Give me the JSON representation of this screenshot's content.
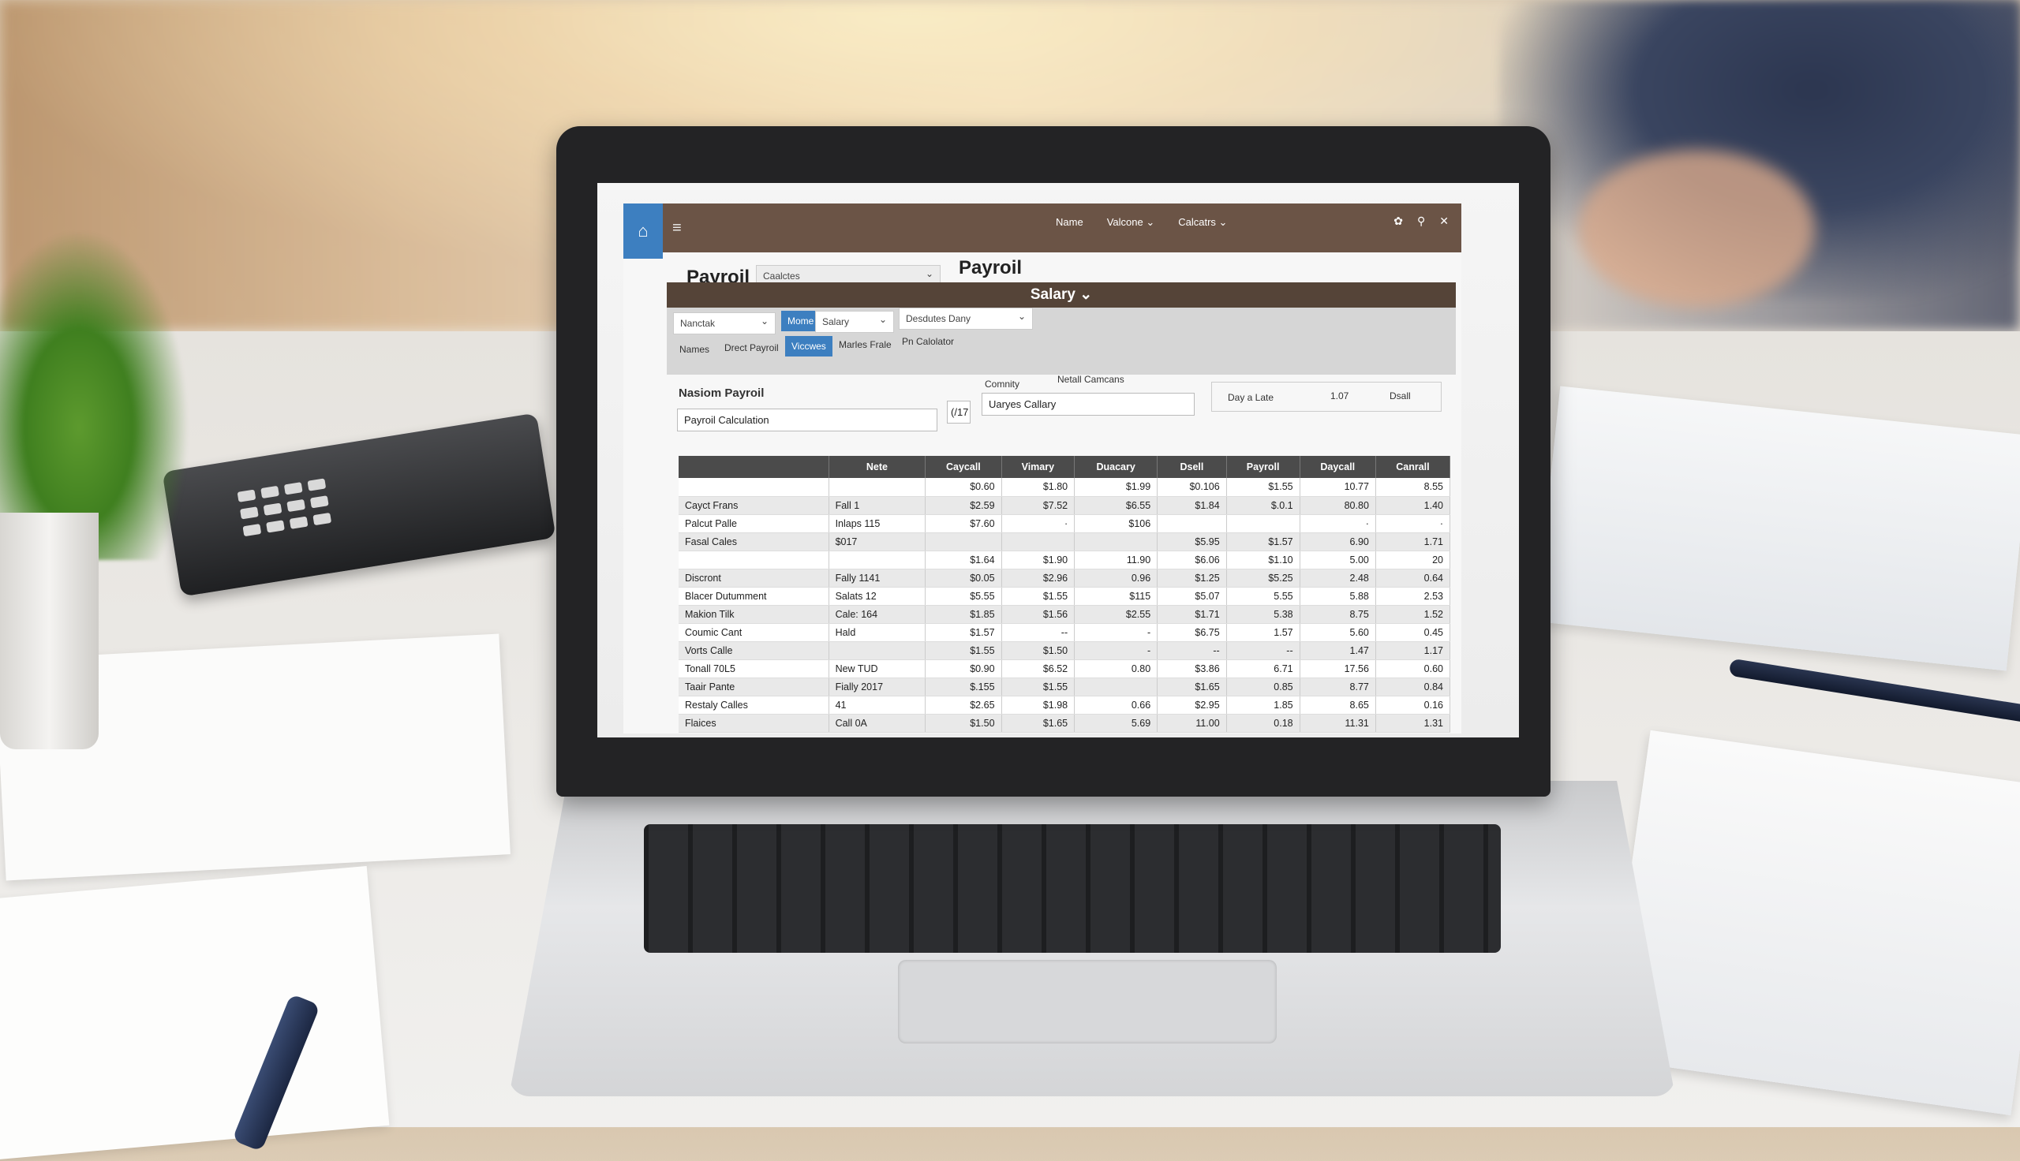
{
  "titlebar": {
    "home_icon": "home-icon",
    "menu_icon": "hamburger-icon",
    "nav": [
      "Name",
      "Valcone ⌄",
      "Calcatrs ⌄"
    ],
    "controls": [
      "gear-icon",
      "pin-icon",
      "close-icon"
    ],
    "controls_glyphs": [
      "✿",
      "⚲",
      "✕"
    ]
  },
  "header": {
    "title": "Payroil",
    "dropdown": "Caalctes",
    "title2": "Payroil"
  },
  "salary_bar": {
    "label": "Salary ⌄"
  },
  "toolbar": {
    "dropdown1": "Nanctak",
    "button_mome": "Mome",
    "dropdown_salary": "Salary",
    "dropdown_deductions": "Desdutes Dany",
    "tabs": [
      "Names",
      "Drect Payroil",
      "Viccwes",
      "Marles Frale",
      "Pn Calolator"
    ],
    "active_tab": "Viccwes"
  },
  "form": {
    "section_label": "Nasiom Payroil",
    "calc_dropdown": "Payroil Calculation",
    "count_box": "(/17",
    "community_label": "Comnity",
    "community_dropdown": "Uaryes Callary",
    "details_label": "Netall Camcans",
    "day_late_label": "Day a Late",
    "day_late_value": "1.07",
    "dsall_label": "Dsall"
  },
  "table": {
    "columns": [
      "",
      "Nete",
      "Caycall",
      "Vimary",
      "Duacary",
      "Dsell",
      "Payroll",
      "Daycall",
      "Canrall"
    ],
    "rows": [
      [
        "",
        "",
        "$0.60",
        "$1.80",
        "$1.99",
        "$0.106",
        "$1.55",
        "10.77",
        "8.55"
      ],
      [
        "Cayct Frans",
        "Fall 1",
        "$2.59",
        "$7.52",
        "$6.55",
        "$1.84",
        "$.0.1",
        "80.80",
        "1.40"
      ],
      [
        "Palcut Palle",
        "Inlaps 115",
        "$7.60",
        "·",
        "$106",
        "",
        "",
        "·",
        "·"
      ],
      [
        "Fasal Cales",
        "$017",
        "",
        "",
        "",
        "$5.95",
        "$1.57",
        "6.90",
        "1.71"
      ],
      [
        "",
        "",
        "$1.64",
        "$1.90",
        "11.90",
        "$6.06",
        "$1.10",
        "5.00",
        "20"
      ],
      [
        "Discront",
        "Fally 1141",
        "$0.05",
        "$2.96",
        "0.96",
        "$1.25",
        "$5.25",
        "2.48",
        "0.64"
      ],
      [
        "Blacer Dutumment",
        "Salats 12",
        "$5.55",
        "$1.55",
        "$115",
        "$5.07",
        "5.55",
        "5.88",
        "2.53"
      ],
      [
        "Makion Tilk",
        "Cale: 164",
        "$1.85",
        "$1.56",
        "$2.55",
        "$1.71",
        "5.38",
        "8.75",
        "1.52"
      ],
      [
        "Coumic Cant",
        "Hald",
        "$1.57",
        "--",
        "-",
        "$6.75",
        "1.57",
        "5.60",
        "0.45"
      ],
      [
        "Vorts Calle",
        "",
        "$1.55",
        "$1.50",
        "-",
        "--",
        "--",
        "1.47",
        "1.17"
      ],
      [
        "Tonall 70L5",
        "New TUD",
        "$0.90",
        "$6.52",
        "0.80",
        "$3.86",
        "6.71",
        "17.56",
        "0.60"
      ],
      [
        "Taair Pante",
        "Fially 2017",
        "$.155",
        "$1.55",
        "",
        "$1.65",
        "0.85",
        "8.77",
        "0.84"
      ],
      [
        "Restaly Calles",
        "41",
        "$2.65",
        "$1.98",
        "0.66",
        "$2.95",
        "1.85",
        "8.65",
        "0.16"
      ],
      [
        "Flaices",
        "Call 0A",
        "$1.50",
        "$1.65",
        "5.69",
        "11.00",
        "0.18",
        "11.31",
        "1.31"
      ]
    ]
  },
  "colors": {
    "titlebar": "#6b5446",
    "accent": "#3d7fc0",
    "salary_bar": "#554438",
    "table_header": "#4b4b4b"
  }
}
